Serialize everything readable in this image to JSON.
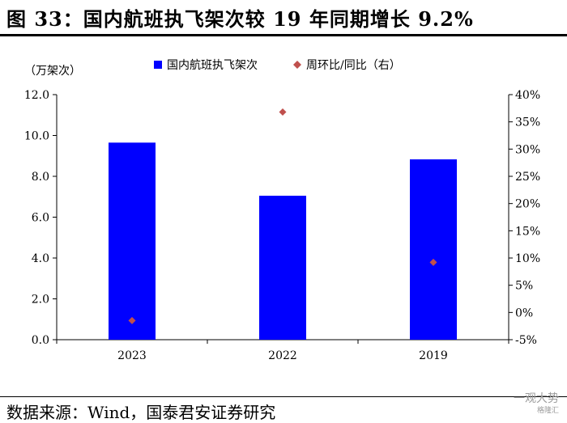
{
  "figure": {
    "title": "图 33：国内航班执飞架次较 19 年同期增长 9.2%",
    "source": "数据来源：Wind，国泰君安证券研究",
    "watermark_line1": "一观大势",
    "watermark_line2": "格隆汇"
  },
  "chart_data": {
    "type": "bar",
    "categories": [
      "2023",
      "2022",
      "2019"
    ],
    "series": [
      {
        "name": "国内航班执飞架次",
        "type": "bar",
        "axis": "left",
        "values": [
          9.65,
          7.05,
          8.83
        ],
        "color": "#0000ff"
      },
      {
        "name": "周环比/同比（右）",
        "type": "scatter",
        "axis": "right",
        "values": [
          -1.5,
          36.8,
          9.2
        ],
        "color": "#c0504d"
      }
    ],
    "ylabel": "（万架次）",
    "ylim": [
      0,
      12
    ],
    "yticks": [
      "0.0",
      "2.0",
      "4.0",
      "6.0",
      "8.0",
      "10.0",
      "12.0"
    ],
    "y2lim": [
      -5,
      40
    ],
    "y2ticks": [
      "-5%",
      "0%",
      "5%",
      "10%",
      "15%",
      "20%",
      "25%",
      "30%",
      "35%",
      "40%"
    ],
    "legend_position": "top",
    "grid": false
  }
}
